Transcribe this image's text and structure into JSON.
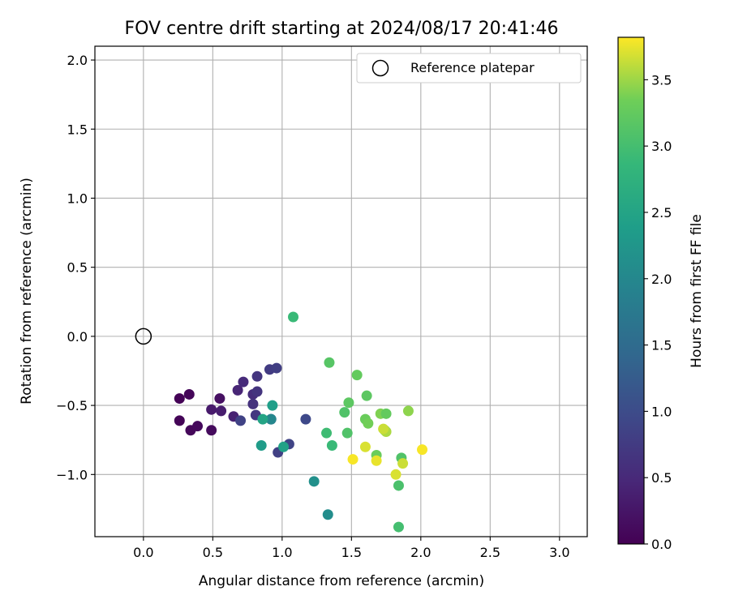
{
  "chart_data": {
    "type": "scatter",
    "title": "FOV centre drift starting at 2024/08/17 20:41:46",
    "xlabel": "Angular distance from reference (arcmin)",
    "ylabel": "Rotation from reference (arcmin)",
    "xlim": [
      -0.35,
      3.2
    ],
    "ylim": [
      -1.45,
      2.1
    ],
    "xticks": [
      0.0,
      0.5,
      1.0,
      1.5,
      2.0,
      2.5,
      3.0
    ],
    "xtick_labels": [
      "0.0",
      "0.5",
      "1.0",
      "1.5",
      "2.0",
      "2.5",
      "3.0"
    ],
    "yticks": [
      -1.0,
      -0.5,
      0.0,
      0.5,
      1.0,
      1.5,
      2.0
    ],
    "ytick_labels": [
      "−1.0",
      "−0.5",
      "0.0",
      "0.5",
      "1.0",
      "1.5",
      "2.0"
    ],
    "grid": true,
    "legend": {
      "location": "upper right",
      "entries": [
        "Reference platepar"
      ]
    },
    "reference_point": {
      "x": 0.0,
      "y": 0.0
    },
    "colorbar": {
      "label": "Hours from first FF file",
      "colormap": "viridis",
      "range": [
        0.0,
        3.82
      ],
      "ticks": [
        0.0,
        0.5,
        1.0,
        1.5,
        2.0,
        2.5,
        3.0,
        3.5
      ],
      "tick_labels": [
        "0.0",
        "0.5",
        "1.0",
        "1.5",
        "2.0",
        "2.5",
        "3.0",
        "3.5"
      ]
    },
    "points": [
      {
        "x": 0.26,
        "y": -0.45,
        "t": 0.02
      },
      {
        "x": 0.33,
        "y": -0.42,
        "t": 0.06
      },
      {
        "x": 0.26,
        "y": -0.61,
        "t": 0.04
      },
      {
        "x": 0.34,
        "y": -0.68,
        "t": 0.08
      },
      {
        "x": 0.39,
        "y": -0.65,
        "t": 0.1
      },
      {
        "x": 0.49,
        "y": -0.68,
        "t": 0.12
      },
      {
        "x": 0.55,
        "y": -0.45,
        "t": 0.18
      },
      {
        "x": 0.49,
        "y": -0.53,
        "t": 0.3
      },
      {
        "x": 0.56,
        "y": -0.54,
        "t": 0.34
      },
      {
        "x": 0.65,
        "y": -0.58,
        "t": 0.4
      },
      {
        "x": 0.68,
        "y": -0.39,
        "t": 0.45
      },
      {
        "x": 0.72,
        "y": -0.33,
        "t": 0.52
      },
      {
        "x": 0.7,
        "y": -0.61,
        "t": 0.85
      },
      {
        "x": 0.79,
        "y": -0.42,
        "t": 0.55
      },
      {
        "x": 0.79,
        "y": -0.49,
        "t": 0.62
      },
      {
        "x": 0.82,
        "y": -0.4,
        "t": 0.65
      },
      {
        "x": 0.82,
        "y": -0.29,
        "t": 0.68
      },
      {
        "x": 0.81,
        "y": -0.57,
        "t": 0.7
      },
      {
        "x": 0.91,
        "y": -0.24,
        "t": 0.75
      },
      {
        "x": 0.96,
        "y": -0.23,
        "t": 0.8
      },
      {
        "x": 0.92,
        "y": -0.6,
        "t": 0.78
      },
      {
        "x": 0.97,
        "y": -0.84,
        "t": 0.82
      },
      {
        "x": 1.05,
        "y": -0.78,
        "t": 0.88
      },
      {
        "x": 1.17,
        "y": -0.6,
        "t": 0.95
      },
      {
        "x": 0.92,
        "y": -0.6,
        "t": 2.0
      },
      {
        "x": 0.93,
        "y": -0.5,
        "t": 2.4
      },
      {
        "x": 0.86,
        "y": -0.6,
        "t": 2.5
      },
      {
        "x": 0.85,
        "y": -0.79,
        "t": 2.35
      },
      {
        "x": 1.01,
        "y": -0.8,
        "t": 2.45
      },
      {
        "x": 1.23,
        "y": -1.05,
        "t": 2.15
      },
      {
        "x": 1.33,
        "y": -1.29,
        "t": 2.1
      },
      {
        "x": 1.08,
        "y": 0.14,
        "t": 2.9
      },
      {
        "x": 1.32,
        "y": -0.7,
        "t": 2.95
      },
      {
        "x": 1.36,
        "y": -0.79,
        "t": 2.9
      },
      {
        "x": 1.34,
        "y": -0.19,
        "t": 3.15
      },
      {
        "x": 1.45,
        "y": -0.55,
        "t": 3.1
      },
      {
        "x": 1.48,
        "y": -0.48,
        "t": 3.2
      },
      {
        "x": 1.47,
        "y": -0.7,
        "t": 3.1
      },
      {
        "x": 1.54,
        "y": -0.28,
        "t": 3.25
      },
      {
        "x": 1.6,
        "y": -0.6,
        "t": 3.3
      },
      {
        "x": 1.62,
        "y": -0.63,
        "t": 3.35
      },
      {
        "x": 1.61,
        "y": -0.43,
        "t": 3.2
      },
      {
        "x": 1.68,
        "y": -0.86,
        "t": 3.3
      },
      {
        "x": 1.71,
        "y": -0.56,
        "t": 3.4
      },
      {
        "x": 1.75,
        "y": -0.56,
        "t": 3.25
      },
      {
        "x": 1.74,
        "y": -0.68,
        "t": 3.3
      },
      {
        "x": 1.75,
        "y": -0.69,
        "t": 3.55
      },
      {
        "x": 1.86,
        "y": -0.88,
        "t": 3.1
      },
      {
        "x": 1.84,
        "y": -1.08,
        "t": 3.05
      },
      {
        "x": 1.84,
        "y": -1.38,
        "t": 3.0
      },
      {
        "x": 1.91,
        "y": -0.54,
        "t": 3.45
      },
      {
        "x": 1.51,
        "y": -0.89,
        "t": 3.8
      },
      {
        "x": 1.6,
        "y": -0.8,
        "t": 3.7
      },
      {
        "x": 1.68,
        "y": -0.9,
        "t": 3.75
      },
      {
        "x": 1.73,
        "y": -0.67,
        "t": 3.65
      },
      {
        "x": 1.82,
        "y": -1.0,
        "t": 3.7
      },
      {
        "x": 1.87,
        "y": -0.92,
        "t": 3.65
      },
      {
        "x": 2.01,
        "y": -0.82,
        "t": 3.8
      }
    ]
  }
}
